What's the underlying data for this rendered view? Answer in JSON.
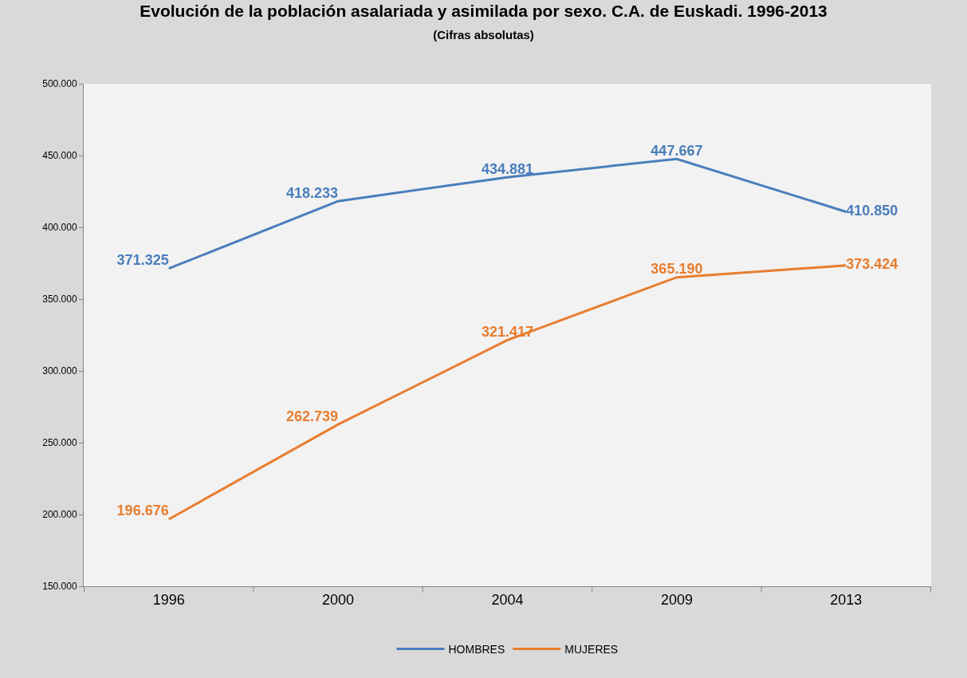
{
  "chart_data": {
    "type": "line",
    "title": "Evolución de la población asalariada y asimilada por sexo. C.A. de Euskadi. 1996-2013",
    "subtitle": "(Cifras absolutas)",
    "categories": [
      "1996",
      "2000",
      "2004",
      "2009",
      "2013"
    ],
    "series": [
      {
        "name": "HOMBRES",
        "color": "#4a7ebb",
        "values": [
          371325,
          418233,
          434881,
          447667,
          410850
        ],
        "value_labels": [
          "371.325",
          "418.233",
          "434.881",
          "447.667",
          "410.850"
        ]
      },
      {
        "name": "MUJERES",
        "color": "#e87d2f",
        "values": [
          196676,
          262739,
          321417,
          365190,
          373424
        ],
        "value_labels": [
          "196.676",
          "262.739",
          "321.417",
          "365.190",
          "373.424"
        ]
      }
    ],
    "ylim": [
      150000,
      500000
    ],
    "yticks": [
      {
        "value": 150000,
        "label": "150.000"
      },
      {
        "value": 200000,
        "label": "200.000"
      },
      {
        "value": 250000,
        "label": "250.000"
      },
      {
        "value": 300000,
        "label": "300.000"
      },
      {
        "value": 350000,
        "label": "350.000"
      },
      {
        "value": 400000,
        "label": "400.000"
      },
      {
        "value": 450000,
        "label": "450.000"
      },
      {
        "value": 500000,
        "label": "500.000"
      }
    ],
    "grid": false,
    "legend": "bottom",
    "marker": "none",
    "line_style": "solid"
  }
}
